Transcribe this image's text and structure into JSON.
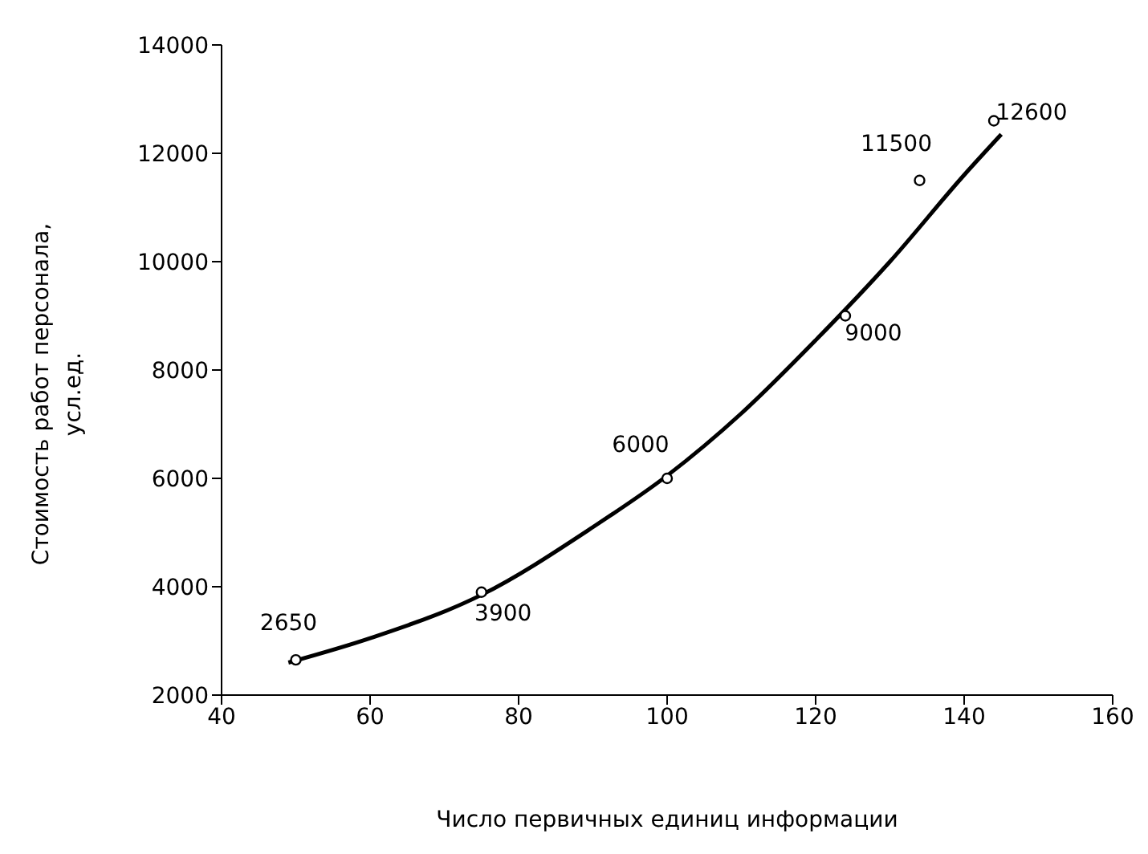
{
  "chart_data": {
    "type": "scatter",
    "xlabel": "Число первичных единиц информации",
    "ylabel": "Стоимость работ персонала, усл.ед.",
    "xlim": [
      40,
      160
    ],
    "xticks": [
      40,
      60,
      80,
      100,
      120,
      140,
      160
    ],
    "ylim": [
      2000,
      14000
    ],
    "yticks": [
      2000,
      4000,
      6000,
      8000,
      10000,
      12000,
      14000
    ],
    "marker": "circle",
    "series": [
      {
        "color": "#000000",
        "x": [
          50,
          75,
          100,
          124,
          134,
          144
        ],
        "values": [
          2650,
          3900,
          6000,
          9000,
          11500,
          12600
        ],
        "value_labels": [
          "2650",
          "3900",
          "6000",
          "9000",
          "11500",
          "12600"
        ]
      },
      {
        "type": "line",
        "color": "#000000",
        "marker": "none",
        "line_style": "solid",
        "x": [
          49,
          60,
          75,
          90,
          100,
          110,
          120,
          130,
          140,
          145
        ],
        "values": [
          2600,
          3050,
          3850,
          5100,
          6050,
          7200,
          8550,
          10000,
          11600,
          12350
        ]
      }
    ]
  }
}
